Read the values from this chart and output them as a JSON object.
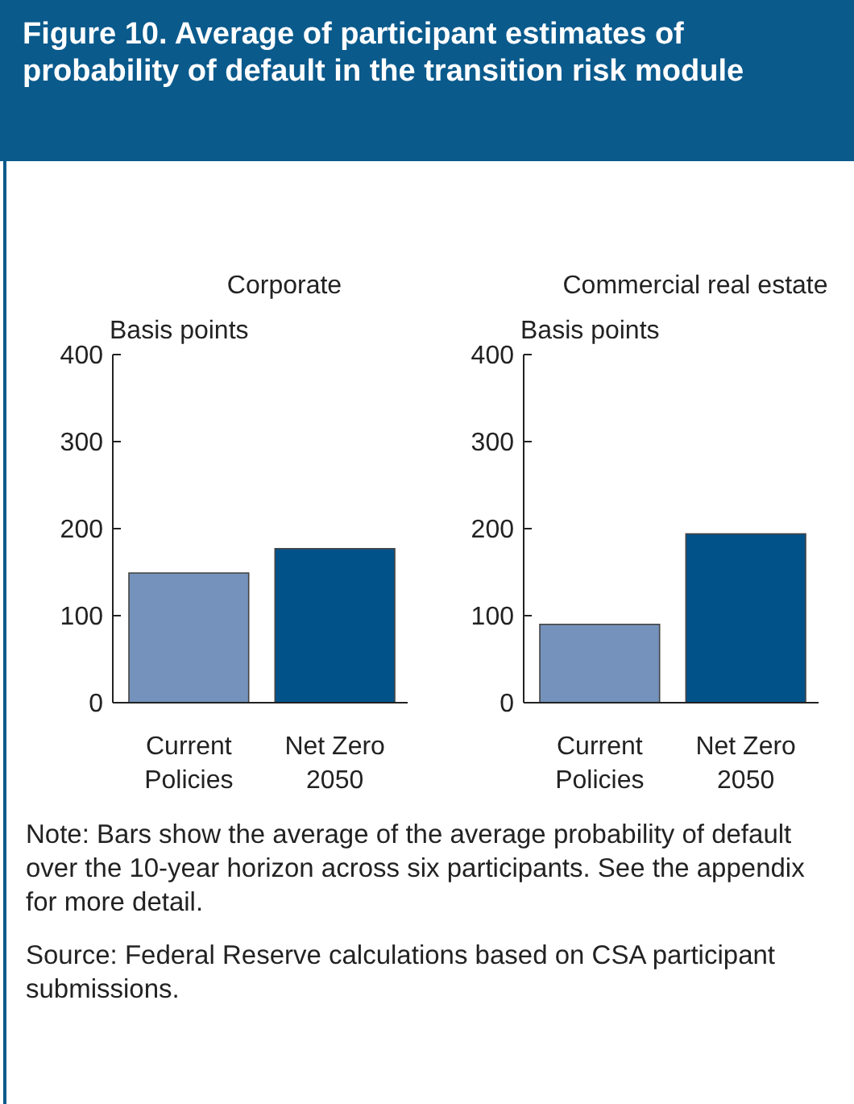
{
  "chart_data": [
    {
      "type": "bar",
      "title": "Corporate",
      "ylabel": "Basis points",
      "categories": [
        "Current\nPolicies",
        "Net Zero\n2050"
      ],
      "values": [
        149,
        177
      ],
      "colors": [
        "#7492bb",
        "#02528a"
      ],
      "ylim": [
        0,
        400
      ],
      "yticks": [
        0,
        100,
        200,
        300,
        400
      ],
      "annotations": [
        "Figure 10. Average of participant estimates of probability of default in the transition risk module"
      ]
    },
    {
      "type": "bar",
      "title": "Commercial real estate",
      "ylabel": "Basis points",
      "categories": [
        "Current\nPolicies",
        "Net Zero\n2050"
      ],
      "values": [
        90,
        194
      ],
      "colors": [
        "#7492bb",
        "#02528a"
      ],
      "ylim": [
        0,
        400
      ],
      "yticks": [
        0,
        100,
        200,
        300,
        400
      ],
      "annotations": [
        "Note: Bars show the average of the average probability of default over the 10-year horizon across six participants. See the appendix for more detail.",
        "Source: Federal Reserve calculations based on CSA participant submissions."
      ]
    }
  ]
}
